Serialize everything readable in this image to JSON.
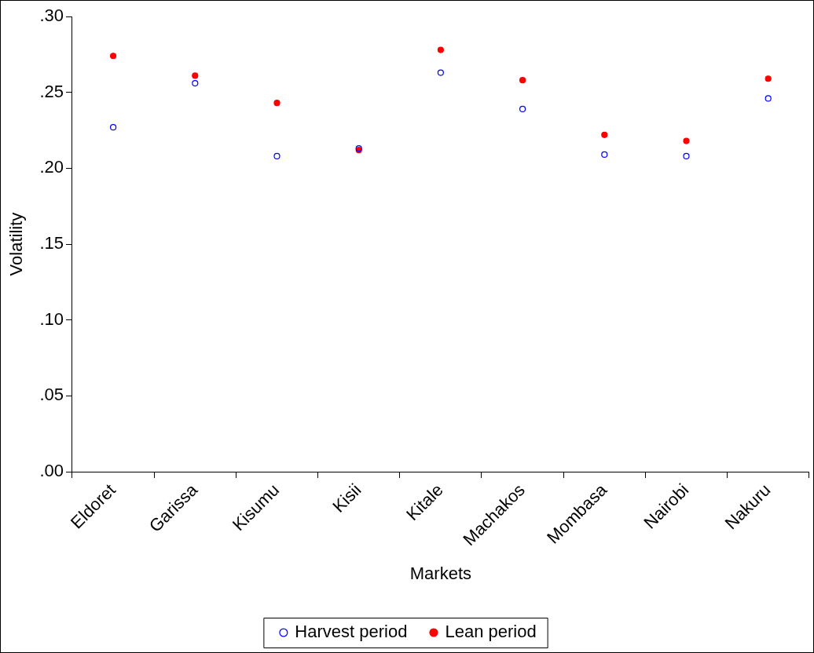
{
  "chart_data": {
    "type": "scatter",
    "xlabel": "Markets",
    "ylabel": "Volatility",
    "categories": [
      "Eldoret",
      "Garissa",
      "Kisumu",
      "Kisii",
      "Kitale",
      "Machakos",
      "Mombasa",
      "Nairobi",
      "Nakuru"
    ],
    "series": [
      {
        "name": "Harvest period",
        "color": "#0000ff",
        "marker": "hollow circle",
        "values": [
          0.227,
          0.256,
          0.208,
          0.213,
          0.263,
          0.239,
          0.209,
          0.208,
          0.246
        ]
      },
      {
        "name": "Lean period",
        "color": "#ff0000",
        "marker": "circle",
        "values": [
          0.274,
          0.261,
          0.243,
          0.212,
          0.278,
          0.258,
          0.222,
          0.218,
          0.259
        ]
      }
    ],
    "ylim": [
      0,
      0.3
    ],
    "yticks": [
      {
        "value": 0,
        "label": ".00"
      },
      {
        "value": 0.05,
        "label": ".05"
      },
      {
        "value": 0.1,
        "label": ".10"
      },
      {
        "value": 0.15,
        "label": ".15"
      },
      {
        "value": 0.2,
        "label": ".20"
      },
      {
        "value": 0.25,
        "label": ".25"
      },
      {
        "value": 0.3,
        "label": ".30"
      }
    ],
    "grid": false,
    "legend": "bottom"
  }
}
